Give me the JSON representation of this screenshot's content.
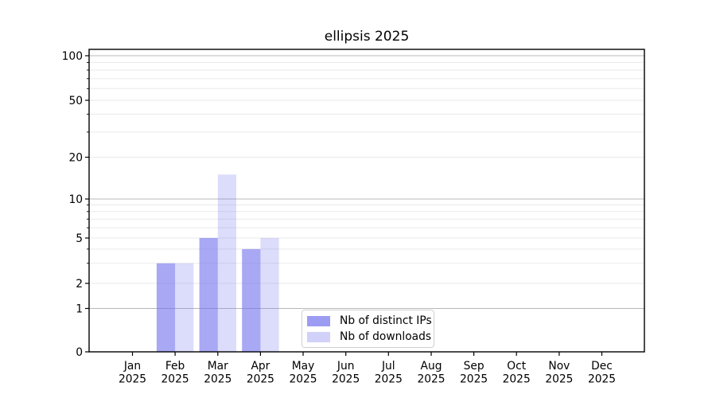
{
  "colors": {
    "background": "#ffffff",
    "spine": "#000000",
    "grid_strong": "#b8b8b8",
    "grid_weak": "#eaeaea",
    "tick": "#000000",
    "text": "#000000",
    "bar_base": "#7272ee",
    "legend_border": "#d0d0d0"
  },
  "chart_data": {
    "type": "bar",
    "title": "ellipsis 2025",
    "xlabel": "",
    "ylabel": "",
    "grid": true,
    "year": "2025",
    "categories": [
      "Jan",
      "Feb",
      "Mar",
      "Apr",
      "May",
      "Jun",
      "Jul",
      "Aug",
      "Sep",
      "Oct",
      "Nov",
      "Dec"
    ],
    "series": [
      {
        "name": "Nb of distinct IPs",
        "color": "#7272ee",
        "opacity": 0.62,
        "values": [
          0,
          3,
          5,
          4,
          0,
          0,
          0,
          0,
          0,
          0,
          0,
          0
        ]
      },
      {
        "name": "Nb of downloads",
        "color": "#7272ee",
        "opacity": 0.25,
        "values": [
          0,
          3,
          15,
          5,
          0,
          0,
          0,
          0,
          0,
          0,
          0,
          0
        ]
      }
    ],
    "y_axis": {
      "scale": "symlog",
      "ylim": [
        0,
        110
      ],
      "labeled_ticks": [
        0,
        1,
        2,
        5,
        10,
        20,
        50,
        100
      ],
      "strong_gridlines": [
        1,
        10,
        100
      ],
      "weak_gridlines": [
        2,
        3,
        4,
        5,
        6,
        7,
        8,
        9,
        20,
        30,
        40,
        50,
        60,
        70,
        80,
        90
      ]
    },
    "legend": {
      "location": "inside-bottom-center"
    }
  }
}
